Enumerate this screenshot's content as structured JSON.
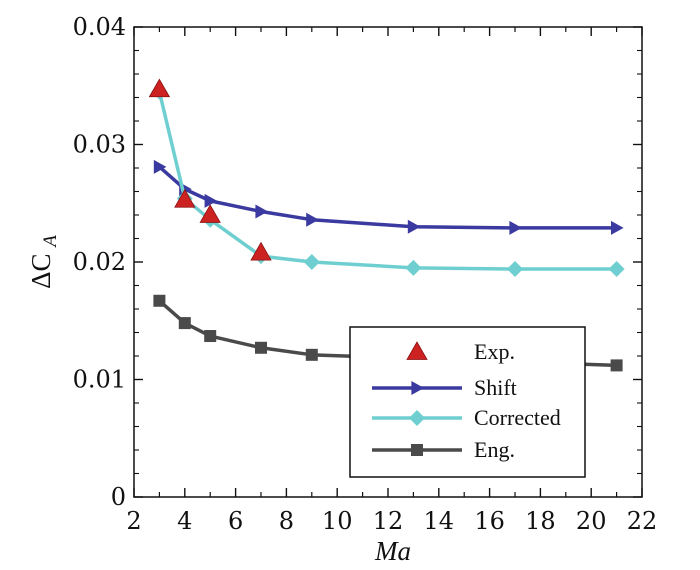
{
  "chart_data": {
    "type": "line",
    "title": "",
    "xlabel": "Ma",
    "ylabel_main": "ΔC",
    "ylabel_sub": "A",
    "xlim": [
      2,
      22
    ],
    "ylim": [
      0,
      0.04
    ],
    "xticks": [
      "2",
      "4",
      "6",
      "8",
      "10",
      "12",
      "14",
      "16",
      "18",
      "20",
      "22"
    ],
    "yticks": [
      "0",
      "0.01",
      "0.02",
      "0.03",
      "0.04"
    ],
    "legend_position": "lower-right",
    "series": [
      {
        "name": "Exp.",
        "style": "markers",
        "marker": "triangle",
        "color": "#cc2222",
        "x": [
          3,
          4,
          5,
          7
        ],
        "y": [
          0.0347,
          0.0253,
          0.024,
          0.0208
        ]
      },
      {
        "name": "Shift",
        "style": "line-markers",
        "marker": "triangle-right",
        "color": "#3a3aa0",
        "x": [
          3,
          4,
          5,
          7,
          9,
          13,
          17,
          21
        ],
        "y": [
          0.0281,
          0.0262,
          0.0252,
          0.0243,
          0.0236,
          0.023,
          0.0229,
          0.0229
        ]
      },
      {
        "name": "Corrected",
        "style": "line-markers",
        "marker": "diamond",
        "color": "#6fcfd0",
        "x": [
          3,
          4,
          5,
          7,
          9,
          13,
          17,
          21
        ],
        "y": [
          0.0345,
          0.0254,
          0.0236,
          0.0205,
          0.02,
          0.0195,
          0.0194,
          0.0194
        ]
      },
      {
        "name": "Eng.",
        "style": "line-markers",
        "marker": "square",
        "color": "#4a4a4a",
        "x": [
          3,
          4,
          5,
          7,
          9,
          21
        ],
        "y": [
          0.0167,
          0.0148,
          0.0137,
          0.0127,
          0.0121,
          0.0112
        ]
      }
    ]
  }
}
